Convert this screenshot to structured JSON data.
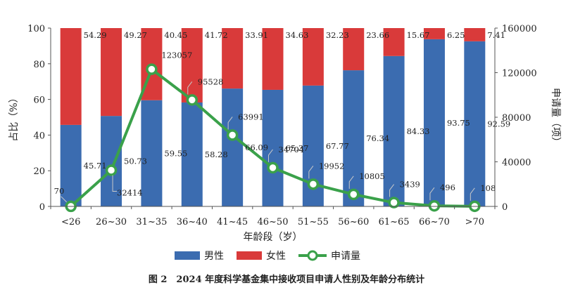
{
  "chart_data": {
    "type": "bar",
    "stacked": true,
    "categories": [
      "<26",
      "26~30",
      "31~35",
      "36~40",
      "41~45",
      "46~50",
      "51~55",
      "56~60",
      "61~65",
      "66~70",
      ">70"
    ],
    "series": [
      {
        "name": "男性",
        "type": "bar",
        "axis": "left",
        "color": "#3b6cb0",
        "values": [
          45.71,
          50.73,
          59.55,
          58.28,
          66.09,
          65.37,
          67.77,
          76.34,
          84.33,
          93.75,
          92.59
        ],
        "labels": [
          "45.71",
          "50.73",
          "59.55",
          "58.28",
          "66.09",
          "65.37",
          "67.77",
          "76.34",
          "84.33",
          "93.75",
          "92.59"
        ]
      },
      {
        "name": "女性",
        "type": "bar",
        "axis": "left",
        "color": "#d93a3a",
        "values": [
          54.29,
          49.27,
          40.45,
          41.72,
          33.91,
          34.63,
          32.23,
          23.66,
          15.67,
          6.25,
          7.41
        ],
        "labels": [
          "54.29",
          "49.27",
          "40.45",
          "41.72",
          "33.91",
          "34.63",
          "32.23",
          "23.66",
          "15.67",
          "6.25",
          "7.41"
        ]
      },
      {
        "name": "申请量",
        "type": "line",
        "axis": "right",
        "color": "#3aa14a",
        "values": [
          70,
          32414,
          123057,
          95528,
          63991,
          34704,
          19952,
          10805,
          3439,
          496,
          108
        ],
        "labels": [
          "70",
          "32414",
          "123057",
          "95528",
          "63991",
          "34704",
          "19952",
          "10805",
          "3439",
          "496",
          "108"
        ]
      }
    ],
    "xlabel": "年龄段（岁）",
    "ylabel": "占比（%）",
    "y2label": "申请量（项）",
    "ylim": [
      0,
      100
    ],
    "y2lim": [
      0,
      160000
    ],
    "yticks": [
      "0",
      "20",
      "40",
      "60",
      "80",
      "100"
    ],
    "y2ticks": [
      "0",
      "40000",
      "80000",
      "120000",
      "160000"
    ],
    "legend": "bottom-center",
    "grid": false,
    "title": "图 2　2024 年度科学基金集中接收项目申请人性别及年龄分布统计"
  }
}
